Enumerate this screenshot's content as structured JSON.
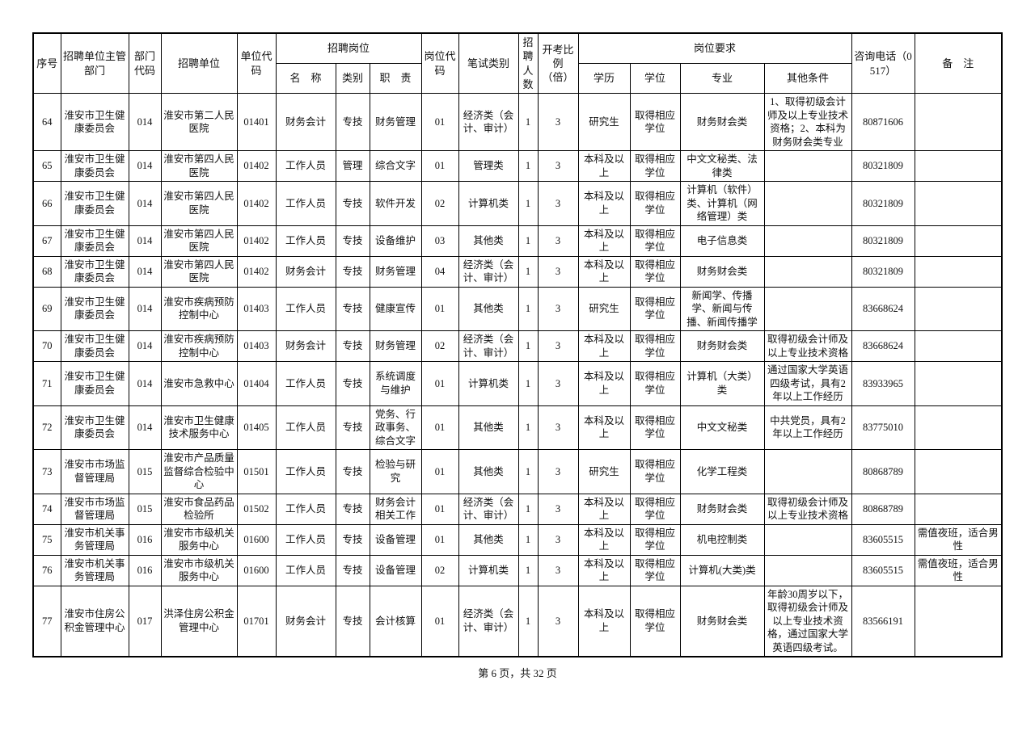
{
  "page": {
    "footer": "第 6 页，共 32 页"
  },
  "table": {
    "column_keys": [
      "seq",
      "supervisor-dept",
      "dept-code",
      "recruit-unit",
      "unit-code",
      "post-name",
      "post-category",
      "post-duty",
      "post-code",
      "exam-category",
      "recruit-count",
      "exam-ratio",
      "education",
      "degree",
      "major",
      "other-conditions",
      "phone",
      "remarks"
    ],
    "header": {
      "seq": "序号",
      "supervisor": "招聘单位主管部门",
      "dept_code": "部门代码",
      "unit": "招聘单位",
      "unit_code": "单位代码",
      "post_group": "招聘岗位",
      "post_name": "名　称",
      "post_category": "类别",
      "post_duty": "职　责",
      "post_code": "岗位代码",
      "exam_category": "笔试类别",
      "recruit_count": "招聘人数",
      "exam_ratio": "开考比例（倍）",
      "req_group": "岗位要求",
      "education": "学历",
      "degree": "学位",
      "major": "专业",
      "other_conditions": "其他条件",
      "phone": "咨询电话（0517）",
      "remarks": "备　注"
    },
    "rows": [
      [
        "64",
        "淮安市卫生健康委员会",
        "014",
        "淮安市第二人民医院",
        "01401",
        "财务会计",
        "专技",
        "财务管理",
        "01",
        "经济类（会计、审计）",
        "1",
        "3",
        "研究生",
        "取得相应学位",
        "财务财会类",
        "1、取得初级会计师及以上专业技术资格；2、本科为财务财会类专业",
        "80871606",
        ""
      ],
      [
        "65",
        "淮安市卫生健康委员会",
        "014",
        "淮安市第四人民医院",
        "01402",
        "工作人员",
        "管理",
        "综合文字",
        "01",
        "管理类",
        "1",
        "3",
        "本科及以上",
        "取得相应学位",
        "中文文秘类、法律类",
        "",
        "80321809",
        ""
      ],
      [
        "66",
        "淮安市卫生健康委员会",
        "014",
        "淮安市第四人民医院",
        "01402",
        "工作人员",
        "专技",
        "软件开发",
        "02",
        "计算机类",
        "1",
        "3",
        "本科及以上",
        "取得相应学位",
        "计算机（软件）类、计算机（网络管理）类",
        "",
        "80321809",
        ""
      ],
      [
        "67",
        "淮安市卫生健康委员会",
        "014",
        "淮安市第四人民医院",
        "01402",
        "工作人员",
        "专技",
        "设备维护",
        "03",
        "其他类",
        "1",
        "3",
        "本科及以上",
        "取得相应学位",
        "电子信息类",
        "",
        "80321809",
        ""
      ],
      [
        "68",
        "淮安市卫生健康委员会",
        "014",
        "淮安市第四人民医院",
        "01402",
        "财务会计",
        "专技",
        "财务管理",
        "04",
        "经济类（会计、审计）",
        "1",
        "3",
        "本科及以上",
        "取得相应学位",
        "财务财会类",
        "",
        "80321809",
        ""
      ],
      [
        "69",
        "淮安市卫生健康委员会",
        "014",
        "淮安市疾病预防控制中心",
        "01403",
        "工作人员",
        "专技",
        "健康宣传",
        "01",
        "其他类",
        "1",
        "3",
        "研究生",
        "取得相应学位",
        "新闻学、传播学、新闻与传播、新闻传播学",
        "",
        "83668624",
        ""
      ],
      [
        "70",
        "淮安市卫生健康委员会",
        "014",
        "淮安市疾病预防控制中心",
        "01403",
        "财务会计",
        "专技",
        "财务管理",
        "02",
        "经济类（会计、审计）",
        "1",
        "3",
        "本科及以上",
        "取得相应学位",
        "财务财会类",
        "取得初级会计师及以上专业技术资格",
        "83668624",
        ""
      ],
      [
        "71",
        "淮安市卫生健康委员会",
        "014",
        "淮安市急救中心",
        "01404",
        "工作人员",
        "专技",
        "系统调度与维护",
        "01",
        "计算机类",
        "1",
        "3",
        "本科及以上",
        "取得相应学位",
        "计算机（大类）类",
        "通过国家大学英语四级考试，具有2年以上工作经历",
        "83933965",
        ""
      ],
      [
        "72",
        "淮安市卫生健康委员会",
        "014",
        "淮安市卫生健康技术服务中心",
        "01405",
        "工作人员",
        "专技",
        "党务、行政事务、综合文字",
        "01",
        "其他类",
        "1",
        "3",
        "本科及以上",
        "取得相应学位",
        "中文文秘类",
        "中共党员，具有2年以上工作经历",
        "83775010",
        ""
      ],
      [
        "73",
        "淮安市市场监督管理局",
        "015",
        "淮安市产品质量监督综合检验中心",
        "01501",
        "工作人员",
        "专技",
        "检验与研究",
        "01",
        "其他类",
        "1",
        "3",
        "研究生",
        "取得相应学位",
        "化学工程类",
        "",
        "80868789",
        ""
      ],
      [
        "74",
        "淮安市市场监督管理局",
        "015",
        "淮安市食品药品检验所",
        "01502",
        "工作人员",
        "专技",
        "财务会计相关工作",
        "01",
        "经济类（会计、审计）",
        "1",
        "3",
        "本科及以上",
        "取得相应学位",
        "财务财会类",
        "取得初级会计师及以上专业技术资格",
        "80868789",
        ""
      ],
      [
        "75",
        "淮安市机关事务管理局",
        "016",
        "淮安市市级机关服务中心",
        "01600",
        "工作人员",
        "专技",
        "设备管理",
        "01",
        "其他类",
        "1",
        "3",
        "本科及以上",
        "取得相应学位",
        "机电控制类",
        "",
        "83605515",
        "需值夜班，适合男性"
      ],
      [
        "76",
        "淮安市机关事务管理局",
        "016",
        "淮安市市级机关服务中心",
        "01600",
        "工作人员",
        "专技",
        "设备管理",
        "02",
        "计算机类",
        "1",
        "3",
        "本科及以上",
        "取得相应学位",
        "计算机(大类)类",
        "",
        "83605515",
        "需值夜班，适合男性"
      ],
      [
        "77",
        "淮安市住房公积金管理中心",
        "017",
        "洪泽住房公积金管理中心",
        "01701",
        "财务会计",
        "专技",
        "会计核算",
        "01",
        "经济类（会计、审计）",
        "1",
        "3",
        "本科及以上",
        "取得相应学位",
        "财务财会类",
        "年龄30周岁以下，取得初级会计师及以上专业技术资格，通过国家大学英语四级考试。",
        "83566191",
        ""
      ]
    ]
  }
}
